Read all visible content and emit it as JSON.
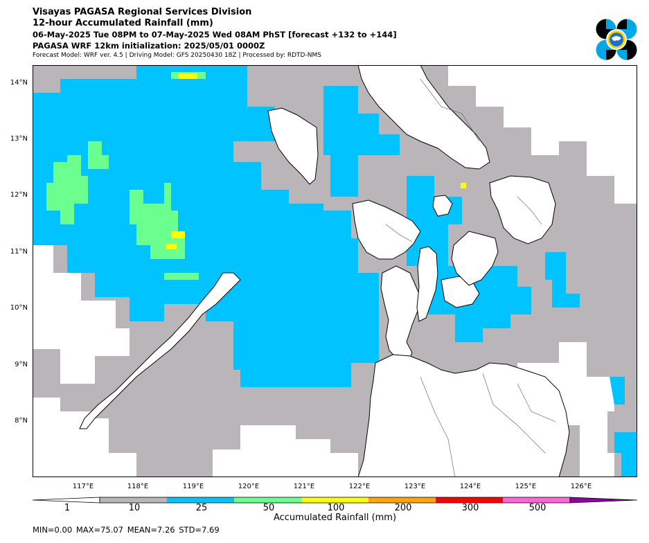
{
  "header": {
    "title": "Visayas PAGASA Regional Services Division",
    "subtitle": "12-hour Accumulated Rainfall (mm)",
    "period": "06-May-2025 Tue 08PM to 07-May-2025 Wed 08AM PhST [forecast +132 to +144]",
    "init": "PAGASA WRF 12km initialization: 2025/05/01 0000Z",
    "model_info": "Forecast Model: WRF ver. 4.5 | Driving Model: GFS 20250430 18Z | Processed by: RDTD-NMS"
  },
  "map": {
    "lat_labels": [
      "14°N",
      "13°N",
      "12°N",
      "11°N",
      "10°N",
      "9°N",
      "8°N"
    ],
    "lon_labels": [
      "117°E",
      "118°E",
      "119°E",
      "120°E",
      "121°E",
      "122°E",
      "123°E",
      "124°E",
      "125°E",
      "126°E"
    ],
    "colors": {
      "background": "#ffffff",
      "land_outline": "#000000",
      "province_outline": "#555555"
    }
  },
  "colorbar": {
    "label": "Accumulated Rainfall (mm)",
    "ticks": [
      "1",
      "10",
      "25",
      "50",
      "100",
      "200",
      "300",
      "500"
    ],
    "colors": [
      "#bab5b8",
      "#00c3ff",
      "#6aff8e",
      "#ffff00",
      "#ffa500",
      "#ff0000",
      "#ff66d9",
      "#8b00a8"
    ]
  },
  "stats": "MIN=0.00   MAX=75.07   MEAN=7.26   STD=7.69"
}
